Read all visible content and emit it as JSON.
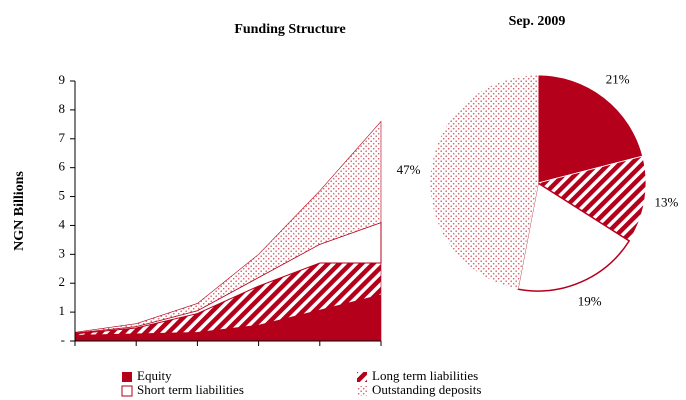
{
  "chart_data": [
    {
      "type": "stacked-area",
      "title": "Funding Structure",
      "y_label": "NGN Billions",
      "categories": [
        null,
        null,
        null,
        null,
        null,
        null
      ],
      "ylim": [
        0,
        9
      ],
      "yticks": [
        {
          "value": 0,
          "label": "-"
        },
        1,
        2,
        3,
        4,
        5,
        6,
        7,
        8,
        9
      ],
      "series": [
        {
          "name": "Equity",
          "color": "#b5001b",
          "fill": "solid",
          "values": [
            0.2,
            0.25,
            0.3,
            0.55,
            1.07,
            1.6
          ]
        },
        {
          "name": "Long term liabilities",
          "color": "#b5001b",
          "fill": "hatch",
          "values": [
            0.05,
            0.2,
            0.65,
            1.35,
            1.63,
            1.1
          ]
        },
        {
          "name": "Short term liabilities",
          "color": "#b5001b",
          "fill": "none",
          "values": [
            0.03,
            0.05,
            0.1,
            0.3,
            0.65,
            1.4
          ]
        },
        {
          "name": "Outstanding deposits",
          "color": "#b5001b",
          "fill": "dots",
          "values": [
            0.02,
            0.1,
            0.25,
            0.8,
            1.85,
            3.5
          ]
        }
      ]
    },
    {
      "type": "pie",
      "title": "Sep. 2009",
      "values": [
        21,
        13,
        19,
        47
      ],
      "value_labels": [
        "21%",
        "13%",
        "19%",
        "47%"
      ]
    }
  ]
}
